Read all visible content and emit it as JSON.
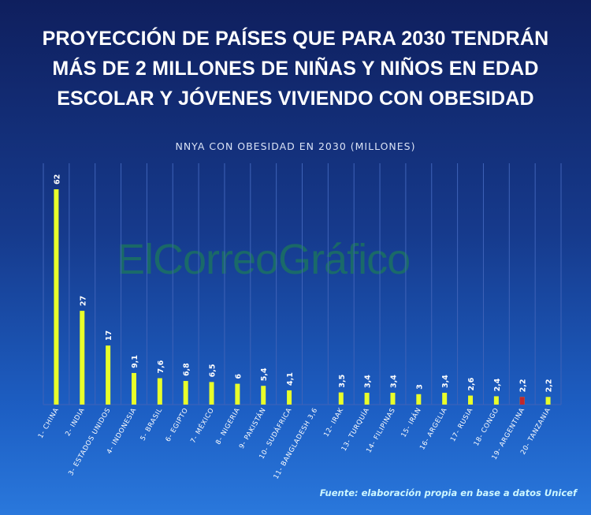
{
  "title_lines": [
    "PROYECCIÓN DE PAÍSES QUE PARA 2030 TENDRÁN",
    "MÁS DE 2 MILLONES DE NIÑAS Y NIÑOS EN EDAD",
    "ESCOLAR Y JÓVENES VIVIENDO CON OBESIDAD"
  ],
  "watermark": "ElCorreoGráfico",
  "source": "Fuente: elaboración propia en base a datos Unicef",
  "colors": {
    "bar": "#e8ff2a",
    "bar_highlight": "#c0272d",
    "grid": "#3f63b8",
    "text": "#ffffff"
  },
  "chart_data": {
    "type": "bar",
    "title": "NNYA CON OBESIDAD EN 2030 (MILLONES)",
    "categories": [
      "1- CHINA",
      "2- INDIA",
      "3- ESTADOS UNIDOS",
      "4- INDONESIA",
      "5- BRASIL",
      "6- EGIPTO",
      "7- MÉXICO",
      "8- NIGERIA",
      "9- PAKISTÁN",
      "10- SUDÁFRICA",
      "11- BANGLADESH",
      "12- IRAK",
      "13- TURQUÍA",
      "14- FILIPINAS",
      "15- IRÁN",
      "16- ARGELIA",
      "17- RUSIA",
      "18- CONGO",
      "19- ARGENTINA",
      "20- TANZANIA"
    ],
    "values": [
      62,
      27,
      17,
      9.1,
      7.6,
      6.8,
      6.5,
      6,
      5.4,
      4.1,
      3.6,
      3.5,
      3.4,
      3.4,
      3,
      3.4,
      2.6,
      2.4,
      2.2,
      2.2
    ],
    "value_labels": [
      "62",
      "27",
      "17",
      "9,1",
      "7,6",
      "6,8",
      "6,5",
      "6",
      "5,4",
      "4,1",
      "3,6",
      "3,5",
      "3,4",
      "3,4",
      "3",
      "3,4",
      "2,6",
      "2,4",
      "2,2",
      "2,2"
    ],
    "bar_visible": [
      true,
      true,
      true,
      true,
      true,
      true,
      true,
      true,
      true,
      true,
      false,
      true,
      true,
      true,
      true,
      true,
      true,
      true,
      true,
      true
    ],
    "highlight": "19- ARGENTINA",
    "ylim": [
      0,
      64
    ],
    "grid": true,
    "xlabel": "",
    "ylabel": ""
  }
}
